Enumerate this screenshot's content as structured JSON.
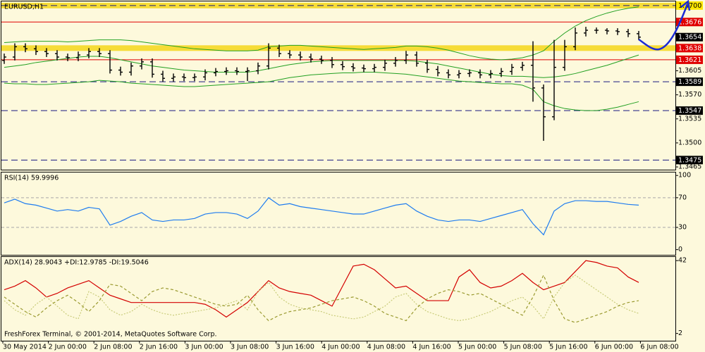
{
  "chart_data": [
    {
      "type": "ohlc",
      "title": "EURUSD,H1",
      "ylim": [
        1.3461,
        1.3706
      ],
      "yticks": [
        1.3605,
        {
          "value": 1.357,
          "label": "1.3570"
        },
        1.3535,
        {
          "value": 1.35,
          "label": "1.3500"
        },
        1.3465
      ],
      "color": "#000000",
      "open": [
        1.362,
        1.3625,
        1.364,
        1.3637,
        1.3633,
        1.363,
        1.3625,
        1.3624,
        1.3628,
        1.3633,
        1.363,
        1.3606,
        1.3603,
        1.3612,
        1.3618,
        1.36,
        1.3594,
        1.3596,
        1.3595,
        1.3596,
        1.3602,
        1.3604,
        1.3605,
        1.3604,
        1.3605,
        1.3612,
        1.3638,
        1.363,
        1.3628,
        1.3625,
        1.3622,
        1.362,
        1.3614,
        1.3611,
        1.3609,
        1.3608,
        1.361,
        1.3616,
        1.362,
        1.3628,
        1.3616,
        1.3607,
        1.3602,
        1.3599,
        1.3601,
        1.3602,
        1.3599,
        1.3601,
        1.3604,
        1.361,
        1.3613,
        1.358,
        1.3538,
        1.361,
        1.364,
        1.366,
        1.3664,
        1.3664,
        1.3663,
        1.3662,
        1.3659
      ],
      "high": [
        1.363,
        1.3645,
        1.3645,
        1.3642,
        1.3638,
        1.3635,
        1.363,
        1.3633,
        1.3638,
        1.3638,
        1.3635,
        1.3611,
        1.3617,
        1.3623,
        1.3623,
        1.3605,
        1.3601,
        1.3601,
        1.3601,
        1.3607,
        1.3609,
        1.361,
        1.361,
        1.361,
        1.3617,
        1.3645,
        1.3643,
        1.3635,
        1.3633,
        1.363,
        1.3627,
        1.3625,
        1.3619,
        1.3616,
        1.3614,
        1.3615,
        1.3621,
        1.3625,
        1.3634,
        1.3633,
        1.3621,
        1.3612,
        1.3607,
        1.3606,
        1.3607,
        1.3607,
        1.3606,
        1.3609,
        1.3615,
        1.3618,
        1.3648,
        1.3585,
        1.365,
        1.365,
        1.3668,
        1.3669,
        1.3668,
        1.3667,
        1.3667,
        1.3666,
        1.3663
      ],
      "low": [
        1.3615,
        1.362,
        1.3632,
        1.3628,
        1.3625,
        1.362,
        1.3619,
        1.3619,
        1.3623,
        1.3625,
        1.3601,
        1.3598,
        1.3598,
        1.3607,
        1.3595,
        1.3589,
        1.3589,
        1.359,
        1.359,
        1.3591,
        1.3597,
        1.3599,
        1.3599,
        1.359,
        1.36,
        1.3607,
        1.3625,
        1.3623,
        1.362,
        1.3617,
        1.3615,
        1.3609,
        1.3606,
        1.3604,
        1.3603,
        1.3603,
        1.3605,
        1.3611,
        1.3615,
        1.3611,
        1.3602,
        1.3597,
        1.3594,
        1.3594,
        1.3596,
        1.3594,
        1.3594,
        1.3596,
        1.3599,
        1.3605,
        1.356,
        1.3503,
        1.3533,
        1.3605,
        1.3635,
        1.3655,
        1.3659,
        1.3658,
        1.3657,
        1.3654,
        1.365
      ],
      "close": [
        1.3625,
        1.364,
        1.3637,
        1.3633,
        1.363,
        1.3625,
        1.3624,
        1.3628,
        1.3633,
        1.363,
        1.3606,
        1.3603,
        1.3612,
        1.3618,
        1.36,
        1.3594,
        1.3596,
        1.3595,
        1.3596,
        1.3602,
        1.3604,
        1.3605,
        1.3604,
        1.3605,
        1.3612,
        1.3638,
        1.363,
        1.3628,
        1.3625,
        1.3622,
        1.362,
        1.3614,
        1.3611,
        1.3609,
        1.3608,
        1.361,
        1.3616,
        1.362,
        1.3628,
        1.3616,
        1.3607,
        1.3602,
        1.3599,
        1.3601,
        1.3602,
        1.3599,
        1.3601,
        1.3604,
        1.361,
        1.3613,
        1.358,
        1.3538,
        1.361,
        1.364,
        1.366,
        1.3664,
        1.3664,
        1.3663,
        1.3662,
        1.3659,
        1.3654
      ],
      "bands": [
        {
          "color": "#22a022",
          "values": [
            1.3646,
            1.3647,
            1.3648,
            1.3648,
            1.3648,
            1.3648,
            1.3647,
            1.3648,
            1.3649,
            1.365,
            1.365,
            1.365,
            1.3649,
            1.3647,
            1.3645,
            1.3643,
            1.3641,
            1.3639,
            1.3637,
            1.3636,
            1.3635,
            1.3634,
            1.3634,
            1.3634,
            1.3635,
            1.364,
            1.3641,
            1.3642,
            1.3642,
            1.3641,
            1.364,
            1.3639,
            1.3638,
            1.3637,
            1.3636,
            1.3637,
            1.3638,
            1.3639,
            1.3641,
            1.3641,
            1.364,
            1.3638,
            1.3635,
            1.3631,
            1.3627,
            1.3624,
            1.3622,
            1.3621,
            1.3622,
            1.3624,
            1.3628,
            1.3634,
            1.3648,
            1.366,
            1.367,
            1.3678,
            1.3684,
            1.3689,
            1.3693,
            1.3696,
            1.3698
          ]
        },
        {
          "color": "#22a022",
          "values": [
            1.361,
            1.3612,
            1.3614,
            1.3617,
            1.3619,
            1.3621,
            1.3623,
            1.3625,
            1.3626,
            1.3626,
            1.3624,
            1.3621,
            1.3618,
            1.3615,
            1.3612,
            1.361,
            1.3608,
            1.3606,
            1.3605,
            1.3604,
            1.3603,
            1.3603,
            1.3603,
            1.3603,
            1.3605,
            1.3608,
            1.3611,
            1.3614,
            1.3616,
            1.3618,
            1.3619,
            1.362,
            1.362,
            1.362,
            1.362,
            1.362,
            1.362,
            1.362,
            1.362,
            1.3619,
            1.3617,
            1.3615,
            1.3612,
            1.3609,
            1.3606,
            1.3603,
            1.36,
            1.3598,
            1.3597,
            1.3597,
            1.3596,
            1.3595,
            1.3596,
            1.3598,
            1.3601,
            1.3605,
            1.3609,
            1.3613,
            1.3618,
            1.3623,
            1.3628
          ]
        },
        {
          "color": "#22a022",
          "values": [
            1.3587,
            1.3586,
            1.3586,
            1.3585,
            1.3585,
            1.3586,
            1.3587,
            1.3588,
            1.3589,
            1.3591,
            1.359,
            1.3589,
            1.3587,
            1.3586,
            1.3585,
            1.3584,
            1.3583,
            1.3582,
            1.3582,
            1.3583,
            1.3584,
            1.3585,
            1.3586,
            1.3587,
            1.3588,
            1.3589,
            1.3592,
            1.3595,
            1.3597,
            1.3599,
            1.36,
            1.3601,
            1.3602,
            1.3602,
            1.3603,
            1.3603,
            1.3602,
            1.3601,
            1.36,
            1.3598,
            1.3596,
            1.3594,
            1.3592,
            1.359,
            1.3589,
            1.3588,
            1.3587,
            1.3586,
            1.3586,
            1.3584,
            1.3578,
            1.356,
            1.3554,
            1.355,
            1.3548,
            1.3547,
            1.3547,
            1.3549,
            1.3552,
            1.3556,
            1.356
          ]
        }
      ],
      "levels": [
        {
          "value": 1.37,
          "label": "1.3700",
          "line": "band dashed",
          "line_color": "#1a1a80",
          "box_color": "#ffe600",
          "text_color": "#000000"
        },
        {
          "value": 1.3676,
          "label": "1.3676",
          "line": "solid",
          "line_color": "#e00000",
          "box_color": "#e00000",
          "text_color": "#ffffff"
        },
        {
          "value": 1.3654,
          "label": "1.3654",
          "line": "none",
          "line_color": "#000000",
          "box_color": "#000000",
          "text_color": "#ffffff"
        },
        {
          "value": 1.3638,
          "label": "1.3638",
          "line": "band",
          "line_color": "#e8c800",
          "box_color": "#e00000",
          "text_color": "#ffffff"
        },
        {
          "value": 1.3621,
          "label": "1.3621",
          "line": "solid",
          "line_color": "#e00000",
          "box_color": "#e00000",
          "text_color": "#ffffff"
        },
        {
          "value": 1.3589,
          "label": "1.3589",
          "line": "dashed",
          "line_color": "#1a1a80",
          "box_color": "#000000",
          "text_color": "#ffffff"
        },
        {
          "value": 1.3547,
          "label": "1.3547",
          "line": "dashed",
          "line_color": "#1a1a80",
          "box_color": "#000000",
          "text_color": "#ffffff"
        },
        {
          "value": 1.3475,
          "label": "1.3475",
          "line": "dashed",
          "line_color": "#1a1a80",
          "box_color": "#000000",
          "text_color": "#ffffff"
        }
      ]
    },
    {
      "type": "line",
      "title": "RSI(14) 59.9996",
      "ylim": [
        -7,
        104
      ],
      "yticks": [
        100,
        70,
        30,
        0
      ],
      "levels": [
        70,
        30
      ],
      "series": [
        {
          "color": "#1e7cf0",
          "dash": "none",
          "values": [
            63,
            68,
            62,
            60,
            56,
            52,
            54,
            52,
            57,
            55,
            33,
            38,
            45,
            50,
            40,
            38,
            40,
            40,
            42,
            48,
            50,
            50,
            48,
            42,
            52,
            70,
            60,
            62,
            58,
            56,
            54,
            52,
            50,
            48,
            48,
            52,
            56,
            60,
            62,
            52,
            45,
            40,
            38,
            40,
            40,
            38,
            42,
            46,
            50,
            54,
            35,
            20,
            52,
            62,
            66,
            66,
            65,
            65,
            63,
            61,
            60
          ]
        }
      ]
    },
    {
      "type": "line",
      "title": "ADX(14) 28.9043 +DI:12.9785 -DI:19.5046",
      "ylim": [
        -2,
        44
      ],
      "yticks": [
        42,
        2
      ],
      "levels": [],
      "series": [
        {
          "color": "#d40000",
          "dash": "none",
          "values": [
            26,
            28,
            31,
            27,
            22,
            24,
            27,
            29,
            31,
            27,
            23,
            21,
            19,
            19,
            19,
            19,
            19,
            19,
            19,
            18,
            15,
            11,
            15,
            19,
            25,
            31,
            27,
            25,
            24,
            23,
            20,
            17,
            28,
            39,
            40,
            37,
            32,
            27,
            28,
            24,
            20,
            20,
            20,
            33,
            37,
            30,
            27,
            28,
            31,
            35,
            30,
            26,
            28,
            30,
            36,
            42,
            41,
            39,
            38,
            33,
            30
          ]
        },
        {
          "color": "#c9cc7a",
          "dash": "2 2",
          "values": [
            20,
            15,
            12,
            18,
            22,
            17,
            12,
            10,
            25,
            22,
            15,
            12,
            14,
            18,
            15,
            13,
            12,
            13,
            14,
            15,
            16,
            18,
            20,
            15,
            25,
            30,
            22,
            18,
            16,
            15,
            14,
            12,
            11,
            10,
            11,
            14,
            17,
            22,
            24,
            18,
            14,
            12,
            10,
            9,
            10,
            12,
            14,
            17,
            20,
            22,
            17,
            10,
            22,
            30,
            34,
            30,
            26,
            22,
            18,
            15,
            13
          ]
        },
        {
          "color": "#9a9a30",
          "dash": "4 3",
          "values": [
            22,
            18,
            14,
            11,
            16,
            20,
            23,
            19,
            14,
            20,
            29,
            28,
            24,
            20,
            25,
            27,
            26,
            24,
            22,
            20,
            18,
            17,
            18,
            23,
            15,
            9,
            12,
            14,
            15,
            16,
            18,
            20,
            21,
            22,
            20,
            17,
            13,
            11,
            9,
            16,
            21,
            24,
            26,
            25,
            23,
            24,
            21,
            18,
            15,
            12,
            22,
            34,
            20,
            10,
            8,
            10,
            12,
            14,
            17,
            19,
            20
          ]
        }
      ]
    }
  ],
  "time_labels": [
    "30 May 2014",
    "2 Jun 00:00",
    "2 Jun 08:00",
    "2 Jun 16:00",
    "3 Jun 00:00",
    "3 Jun 08:00",
    "3 Jun 16:00",
    "4 Jun 00:00",
    "4 Jun 08:00",
    "4 Jun 16:00",
    "5 Jun 00:00",
    "5 Jun 08:00",
    "5 Jun 16:00",
    "6 Jun 00:00",
    "6 Jun 08:00"
  ],
  "footer": "FreshForex Terminal, © 2001-2014, MetaQuotes Software Corp."
}
